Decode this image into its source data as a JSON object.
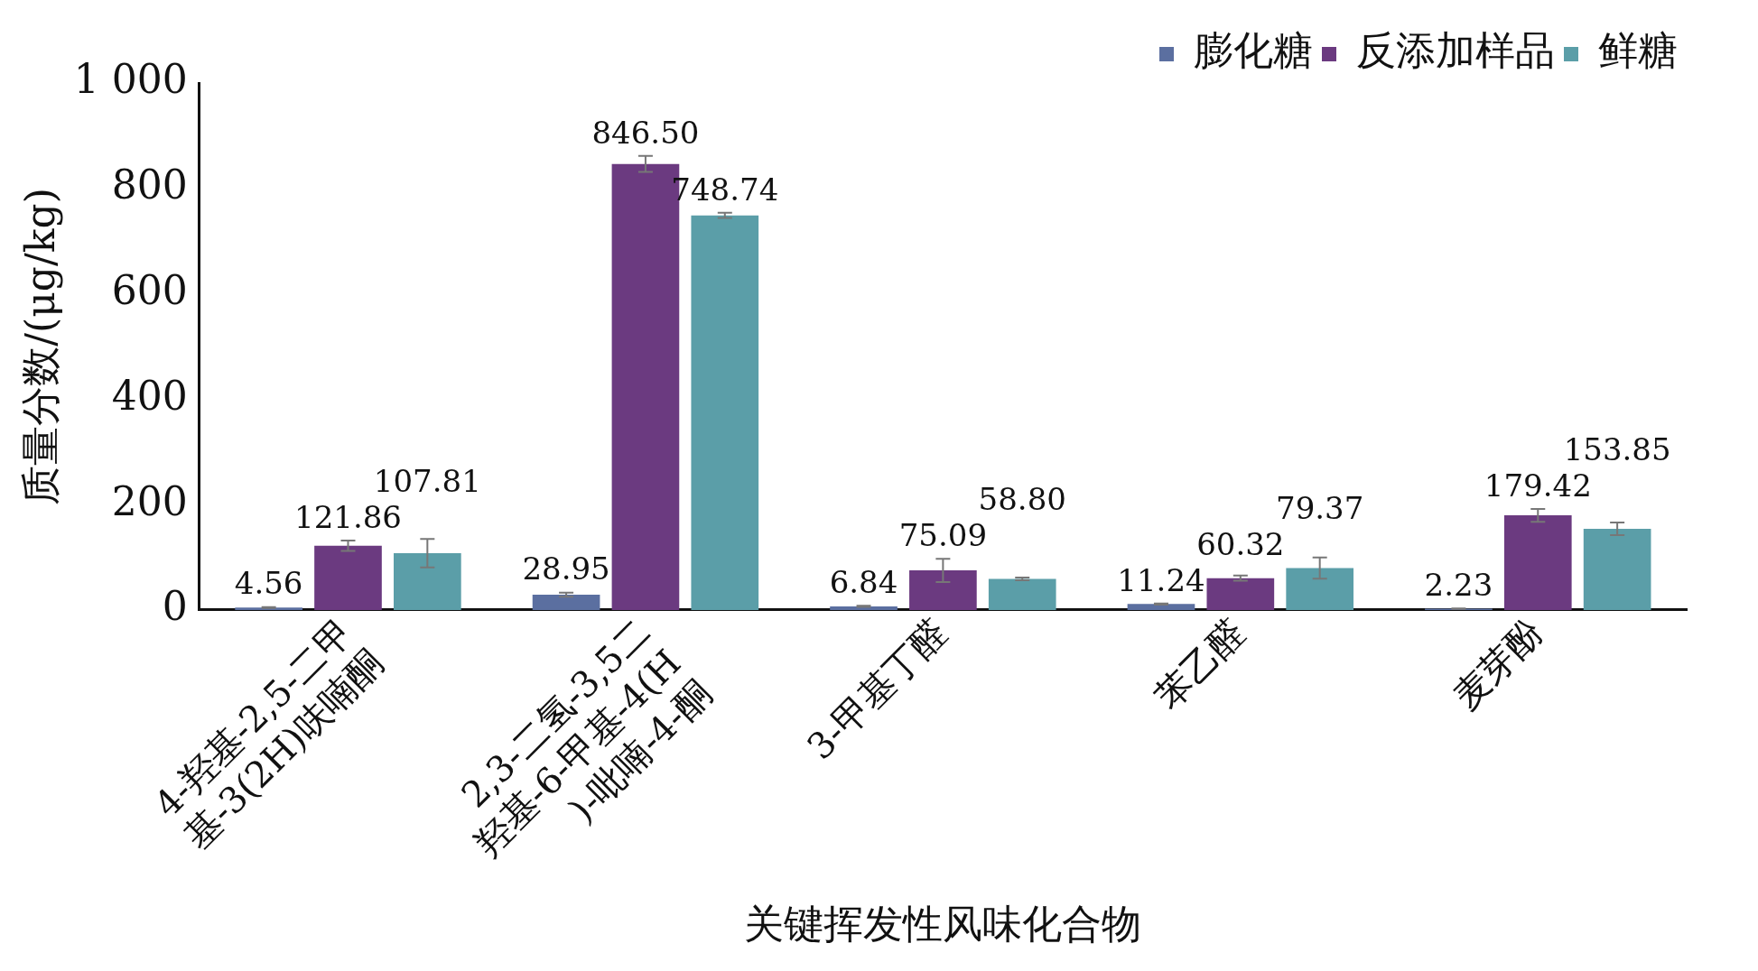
{
  "chart_data": {
    "type": "bar",
    "xlabel": "关键挥发性风味化合物",
    "ylabel": "质量分数/(μg/kg)",
    "categories": [
      "4-羟基-2,5-二甲基-3(2H)呋喃酮",
      "2,3-二氢-3,5二羟基-6-甲基-4(H)-吡喃-4-酮",
      "3-甲基丁醛",
      "苯乙醛",
      "麦芽酚"
    ],
    "series": [
      {
        "name": "膨化糖",
        "color": "#5b6fa0",
        "values": [
          4.56,
          28.95,
          6.84,
          11.24,
          2.23
        ],
        "errors": [
          1,
          4,
          1,
          1,
          0.5
        ],
        "value_labels": [
          "4.56",
          "28.95",
          "6.84",
          "11.24",
          "2.23"
        ]
      },
      {
        "name": "反添加样品",
        "color": "#6b3a80",
        "values": [
          121.86,
          846.5,
          75.09,
          60.32,
          179.42
        ],
        "errors": [
          10,
          15,
          22,
          5,
          12
        ],
        "value_labels": [
          "121.86",
          "846.50",
          "75.09",
          "60.32",
          "179.42"
        ]
      },
      {
        "name": "鲜糖",
        "color": "#5b9ea8",
        "values": [
          107.81,
          748.74,
          58.8,
          79.37,
          153.85
        ],
        "errors": [
          27,
          5,
          2.5,
          20,
          12
        ],
        "value_labels": [
          "107.81",
          "748.74",
          "58.80",
          "79.37",
          "153.85"
        ]
      }
    ],
    "ylim": [
      0,
      1000
    ],
    "yticks": [
      0,
      200,
      400,
      600,
      800,
      {
        "value": 1000,
        "label": "1 000"
      }
    ],
    "grid": false,
    "legend": "top right"
  }
}
